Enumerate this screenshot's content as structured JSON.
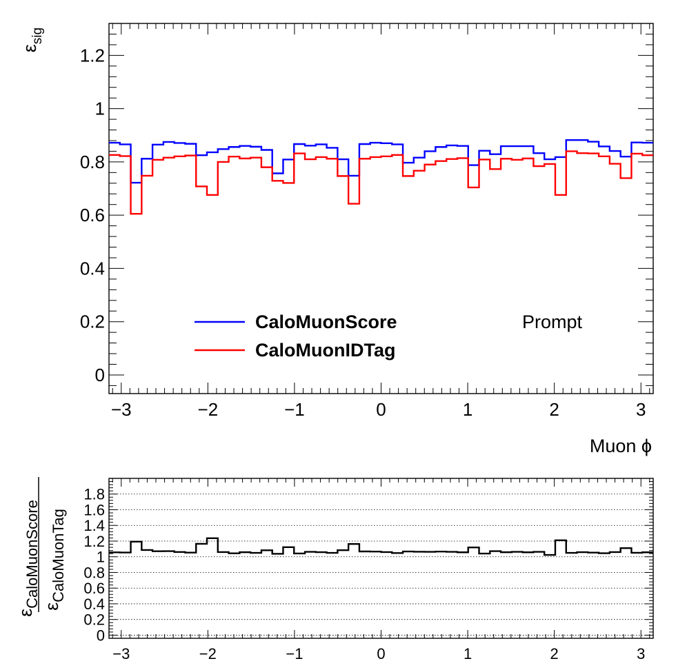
{
  "chart_data": [
    {
      "type": "line",
      "step": true,
      "ylabel_base": "ε",
      "ylabel_sub": "sig",
      "xlabel": "Muon ϕ",
      "xlim": [
        -3.1416,
        3.1416
      ],
      "ylim": [
        -0.07,
        1.32
      ],
      "x_ticks": [
        -3,
        -2,
        -1,
        0,
        1,
        2,
        3
      ],
      "x_tick_labels": [
        "−3",
        "−2",
        "−1",
        "0",
        "1",
        "2",
        "3"
      ],
      "y_ticks": [
        0,
        0.2,
        0.4,
        0.6,
        0.8,
        1,
        1.2
      ],
      "y_tick_labels": [
        "0",
        "0.2",
        "0.4",
        "0.6",
        "0.8",
        "1",
        "1.2"
      ],
      "annotation": "Prompt",
      "legend_position": "bottom-center",
      "bins": 50,
      "series": [
        {
          "name": "CaloMuonScore",
          "color": "#0000ff",
          "values": [
            0.872,
            0.866,
            0.722,
            0.812,
            0.865,
            0.875,
            0.871,
            0.868,
            0.825,
            0.836,
            0.848,
            0.856,
            0.86,
            0.857,
            0.845,
            0.757,
            0.809,
            0.867,
            0.861,
            0.866,
            0.853,
            0.81,
            0.748,
            0.867,
            0.872,
            0.87,
            0.866,
            0.797,
            0.816,
            0.84,
            0.856,
            0.862,
            0.86,
            0.788,
            0.842,
            0.829,
            0.859,
            0.859,
            0.859,
            0.833,
            0.81,
            0.818,
            0.882,
            0.882,
            0.876,
            0.858,
            0.841,
            0.82,
            0.873,
            0.872
          ]
        },
        {
          "name": "CaloMuonIDTag",
          "color": "#ff0000",
          "values": [
            0.826,
            0.822,
            0.605,
            0.748,
            0.808,
            0.816,
            0.821,
            0.824,
            0.708,
            0.676,
            0.8,
            0.82,
            0.813,
            0.816,
            0.78,
            0.729,
            0.721,
            0.832,
            0.81,
            0.818,
            0.812,
            0.747,
            0.643,
            0.812,
            0.818,
            0.821,
            0.826,
            0.747,
            0.767,
            0.79,
            0.803,
            0.811,
            0.814,
            0.704,
            0.809,
            0.773,
            0.812,
            0.808,
            0.813,
            0.784,
            0.792,
            0.676,
            0.84,
            0.833,
            0.832,
            0.821,
            0.793,
            0.739,
            0.831,
            0.825
          ]
        }
      ]
    },
    {
      "type": "line",
      "step": true,
      "ylabel_num_base": "ε",
      "ylabel_num_sub": "CaloMuonScore",
      "ylabel_den_base": "ε",
      "ylabel_den_sub": "CaloMuonTag",
      "xlim": [
        -3.1416,
        3.1416
      ],
      "ylim": [
        -0.04,
        2.0
      ],
      "grid": "horizontal dotted",
      "x_ticks": [
        -3,
        -2,
        -1,
        0,
        1,
        2,
        3
      ],
      "x_tick_labels": [
        "−3",
        "−2",
        "−1",
        "0",
        "1",
        "2",
        "3"
      ],
      "y_ticks": [
        0,
        0.2,
        0.4,
        0.6,
        0.8,
        1,
        1.2,
        1.4,
        1.6,
        1.8
      ],
      "y_tick_labels": [
        "0",
        "0.2",
        "0.4",
        "0.6",
        "0.8",
        "1",
        "1.2",
        "1.4",
        "1.6",
        "1.8"
      ],
      "series": [
        {
          "color": "#000000",
          "values": [
            1.056,
            1.054,
            1.193,
            1.086,
            1.071,
            1.072,
            1.061,
            1.053,
            1.165,
            1.237,
            1.06,
            1.044,
            1.058,
            1.05,
            1.083,
            1.038,
            1.122,
            1.042,
            1.063,
            1.059,
            1.05,
            1.084,
            1.163,
            1.068,
            1.066,
            1.06,
            1.048,
            1.067,
            1.064,
            1.063,
            1.066,
            1.063,
            1.057,
            1.119,
            1.041,
            1.072,
            1.058,
            1.063,
            1.057,
            1.063,
            1.023,
            1.21,
            1.05,
            1.059,
            1.053,
            1.045,
            1.06,
            1.11,
            1.051,
            1.057
          ]
        }
      ]
    }
  ]
}
